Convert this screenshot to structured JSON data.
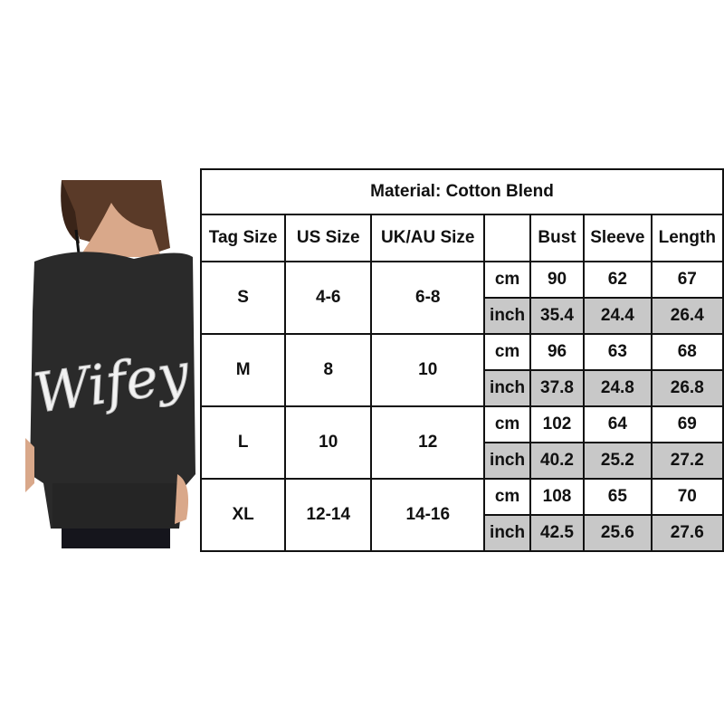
{
  "photo": {
    "print_text": "Wifey",
    "garment_color": "#2a2a2a"
  },
  "table": {
    "title": "Material: Cotton Blend",
    "headers": [
      "Tag Size",
      "US Size",
      "UK/AU Size",
      "",
      "Bust",
      "Sleeve",
      "Length"
    ],
    "unit_cm": "cm",
    "unit_inch": "inch",
    "highlight_color": "#c8c8c8",
    "rows": [
      {
        "tag": "S",
        "us": "4-6",
        "uk": "6-8",
        "cm": [
          "90",
          "62",
          "67"
        ],
        "inch": [
          "35.4",
          "24.4",
          "26.4"
        ]
      },
      {
        "tag": "M",
        "us": "8",
        "uk": "10",
        "cm": [
          "96",
          "63",
          "68"
        ],
        "inch": [
          "37.8",
          "24.8",
          "26.8"
        ]
      },
      {
        "tag": "L",
        "us": "10",
        "uk": "12",
        "cm": [
          "102",
          "64",
          "69"
        ],
        "inch": [
          "40.2",
          "25.2",
          "27.2"
        ]
      },
      {
        "tag": "XL",
        "us": "12-14",
        "uk": "14-16",
        "cm": [
          "108",
          "65",
          "70"
        ],
        "inch": [
          "42.5",
          "25.6",
          "27.6"
        ]
      }
    ]
  }
}
